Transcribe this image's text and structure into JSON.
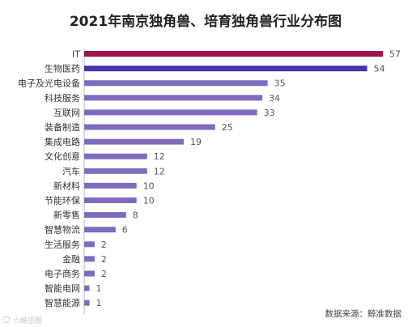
{
  "chart_data": {
    "type": "bar",
    "orientation": "horizontal",
    "title": "2021年南京独角兽、培育独角兽行业分布图",
    "categories": [
      "IT",
      "生物医药",
      "电子及光电设备",
      "科技服务",
      "互联网",
      "装备制造",
      "集成电路",
      "文化创意",
      "汽车",
      "新材料",
      "节能环保",
      "新零售",
      "智慧物流",
      "生活服务",
      "金融",
      "电子商务",
      "智能电网",
      "智慧能源"
    ],
    "values": [
      57,
      54,
      35,
      34,
      33,
      25,
      19,
      12,
      12,
      10,
      10,
      8,
      6,
      2,
      2,
      2,
      1,
      1
    ],
    "bar_colors": [
      "#9b1450",
      "#4336a6",
      "#7f6bbd",
      "#7f6bbd",
      "#7f6bbd",
      "#7f6bbd",
      "#7f6bbd",
      "#7f6bbd",
      "#7f6bbd",
      "#7f6bbd",
      "#7f6bbd",
      "#7f6bbd",
      "#7f6bbd",
      "#7f6bbd",
      "#7f6bbd",
      "#7f6bbd",
      "#7f6bbd",
      "#7f6bbd"
    ],
    "xlim": [
      0,
      57
    ],
    "grid": false,
    "legend": "none"
  },
  "footer": {
    "source": "数据来源：鲸准数据",
    "watermark": "六维思图"
  }
}
